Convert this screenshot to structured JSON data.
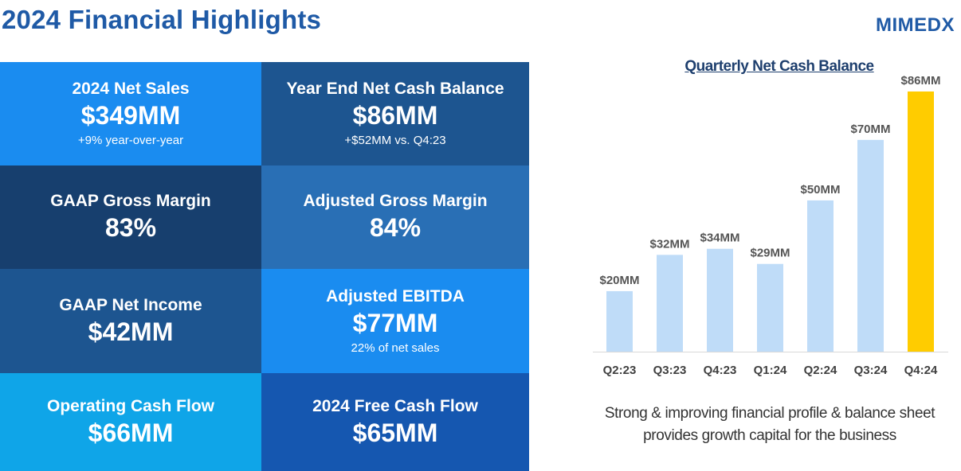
{
  "header": {
    "title": "2024 Financial Highlights",
    "logo_text": "MIMEDX"
  },
  "tiles": [
    {
      "label": "2024 Net Sales",
      "value": "$349MM",
      "sub": "+9% year-over-year",
      "color": "#1a8cf0"
    },
    {
      "label": "Year End Net Cash Balance",
      "value": "$86MM",
      "sub": "+$52MM vs. Q4:23",
      "color": "#1d5590"
    },
    {
      "label": "GAAP Gross Margin",
      "value": "83%",
      "sub": "",
      "color": "#173f6e"
    },
    {
      "label": "Adjusted Gross Margin",
      "value": "84%",
      "sub": "",
      "color": "#296fb5"
    },
    {
      "label": "GAAP Net Income",
      "value": "$42MM",
      "sub": "",
      "color": "#1d5590"
    },
    {
      "label": "Adjusted EBITDA",
      "value": "$77MM",
      "sub": "22% of net sales",
      "color": "#1a8cf0"
    },
    {
      "label": "Operating Cash Flow",
      "value": "$66MM",
      "sub": "",
      "color": "#0fa5e8"
    },
    {
      "label": "2024 Free Cash Flow",
      "value": "$65MM",
      "sub": "",
      "color": "#1557b0"
    }
  ],
  "chart_data": {
    "type": "bar",
    "title": "Quarterly Net Cash Balance",
    "categories": [
      "Q2:23",
      "Q3:23",
      "Q4:23",
      "Q1:24",
      "Q2:24",
      "Q3:24",
      "Q4:24"
    ],
    "values": [
      20,
      32,
      34,
      29,
      50,
      70,
      86
    ],
    "data_labels": [
      "$20MM",
      "$32MM",
      "$34MM",
      "$29MM",
      "$50MM",
      "$70MM",
      "$86MM"
    ],
    "unit": "$MM",
    "ylim": [
      0,
      86
    ],
    "grid": false,
    "bar_color": "#bfdcf8",
    "highlight_color": "#ffcc00",
    "highlight_index": 6
  },
  "caption": {
    "line1": "Strong & improving financial profile & balance sheet",
    "line2": "provides growth capital for the business"
  }
}
